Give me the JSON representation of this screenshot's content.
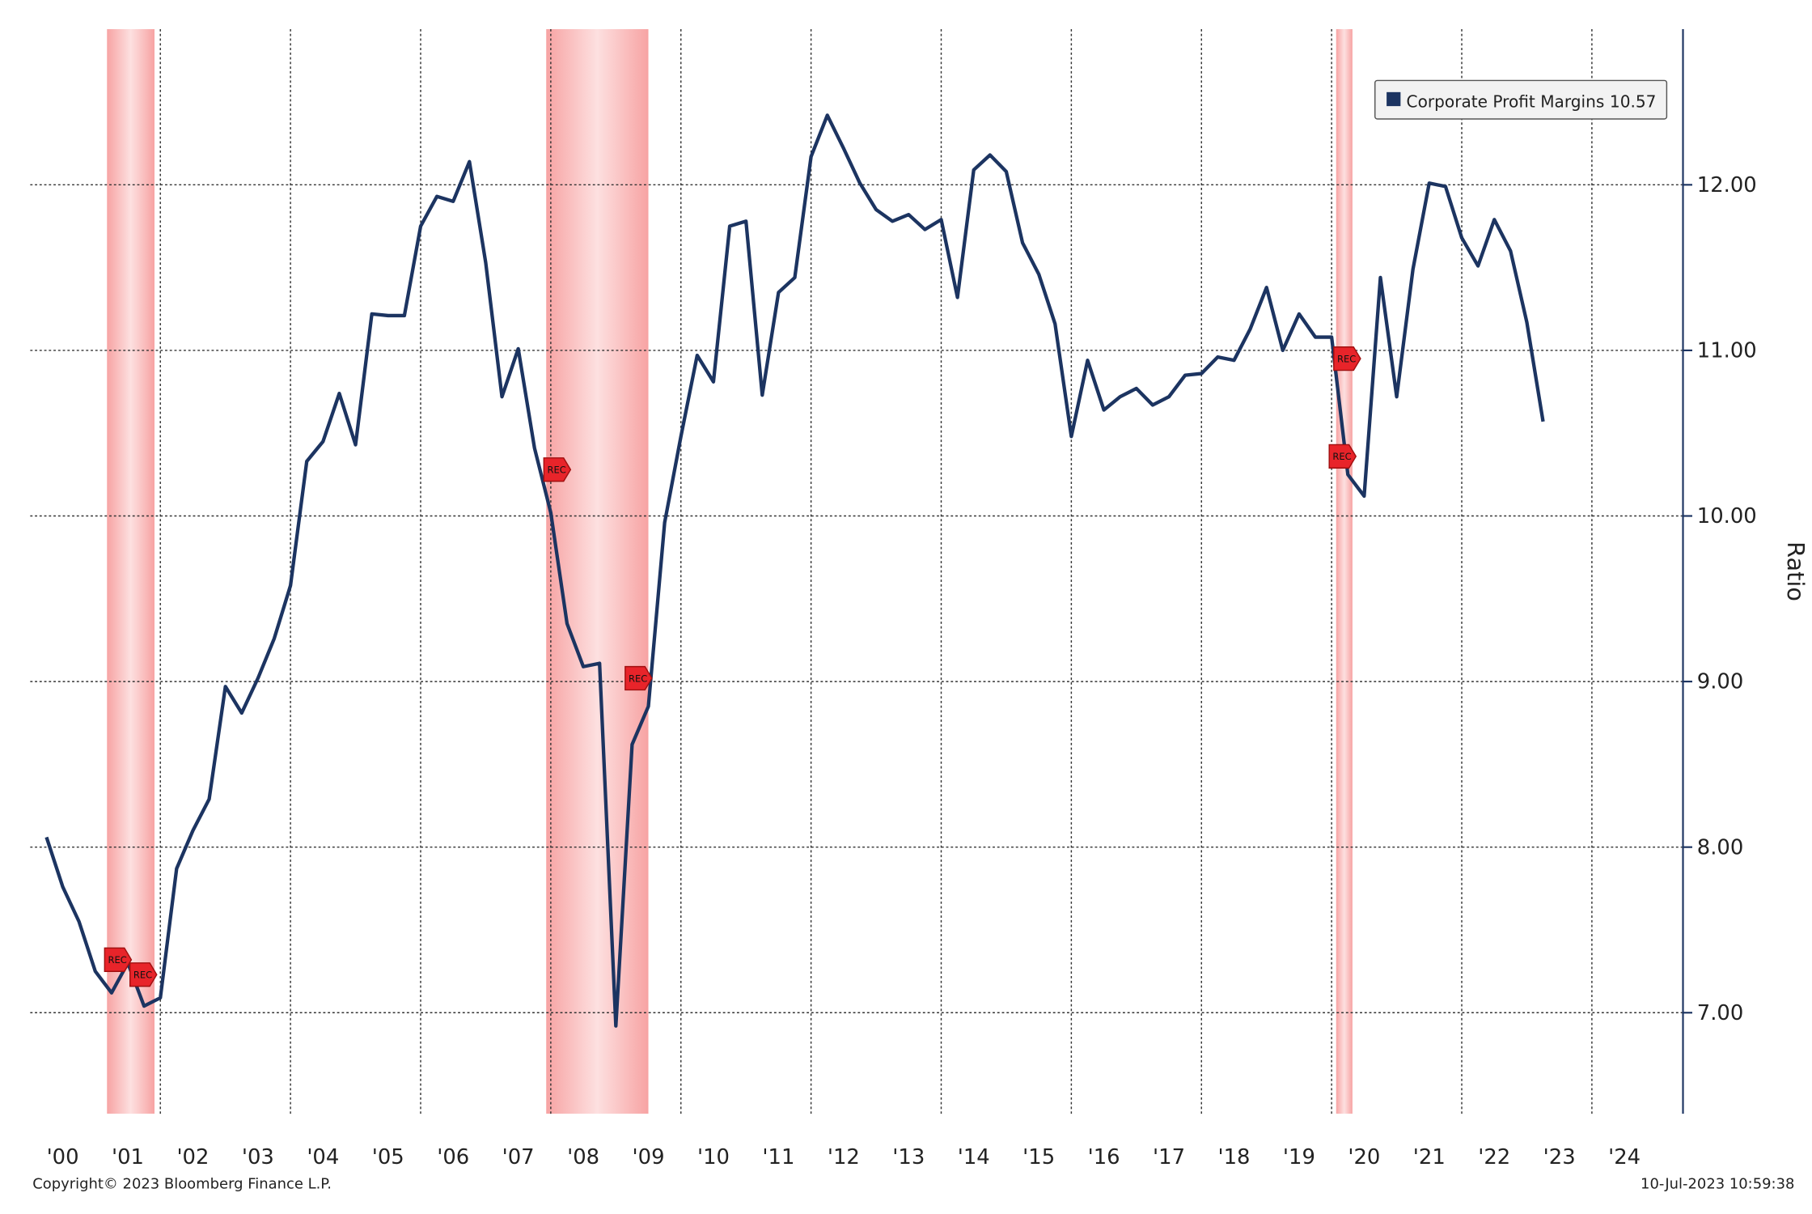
{
  "chart_data": {
    "type": "line",
    "y_axis_label": "Ratio",
    "footer_left": "Copyright© 2023 Bloomberg Finance L.P.",
    "footer_right": "10-Jul-2023 10:59:38",
    "legend_value": 10.57,
    "xlim": [
      2000,
      2025.4
    ],
    "ylim": [
      6.39,
      12.94
    ],
    "xticks": [
      {
        "value": 2000,
        "label": "'00"
      },
      {
        "value": 2001,
        "label": "'01"
      },
      {
        "value": 2002,
        "label": "'02"
      },
      {
        "value": 2003,
        "label": "'03"
      },
      {
        "value": 2004,
        "label": "'04"
      },
      {
        "value": 2005,
        "label": "'05"
      },
      {
        "value": 2006,
        "label": "'06"
      },
      {
        "value": 2007,
        "label": "'07"
      },
      {
        "value": 2008,
        "label": "'08"
      },
      {
        "value": 2009,
        "label": "'09"
      },
      {
        "value": 2010,
        "label": "'10"
      },
      {
        "value": 2011,
        "label": "'11"
      },
      {
        "value": 2012,
        "label": "'12"
      },
      {
        "value": 2013,
        "label": "'13"
      },
      {
        "value": 2014,
        "label": "'14"
      },
      {
        "value": 2015,
        "label": "'15"
      },
      {
        "value": 2016,
        "label": "'16"
      },
      {
        "value": 2017,
        "label": "'17"
      },
      {
        "value": 2018,
        "label": "'18"
      },
      {
        "value": 2019,
        "label": "'19"
      },
      {
        "value": 2020,
        "label": "'20"
      },
      {
        "value": 2021,
        "label": "'21"
      },
      {
        "value": 2022,
        "label": "'22"
      },
      {
        "value": 2023,
        "label": "'23"
      },
      {
        "value": 2024,
        "label": "'24"
      }
    ],
    "yticks": [
      {
        "value": 7,
        "label": "7.00"
      },
      {
        "value": 8,
        "label": "8.00"
      },
      {
        "value": 9,
        "label": "9.00"
      },
      {
        "value": 10,
        "label": "10.00"
      },
      {
        "value": 11,
        "label": "11.00"
      },
      {
        "value": 12,
        "label": "12.00"
      }
    ],
    "grid": true,
    "recessions": [
      [
        2001.18,
        2001.91
      ],
      [
        2007.93,
        2009.5
      ],
      [
        2020.07,
        2020.32
      ]
    ],
    "rec_markers": [
      {
        "label": "REC",
        "x": 2001.34,
        "y": 7.32
      },
      {
        "label": "REC",
        "x": 2001.73,
        "y": 7.23
      },
      {
        "label": "REC",
        "x": 2008.09,
        "y": 10.28
      },
      {
        "label": "REC",
        "x": 2009.34,
        "y": 9.02
      },
      {
        "label": "REC",
        "x": 2020.23,
        "y": 10.95
      },
      {
        "label": "REC",
        "x": 2020.16,
        "y": 10.36
      }
    ],
    "x": [
      2000.25,
      2000.5,
      2000.75,
      2001,
      2001.25,
      2001.5,
      2001.75,
      2002,
      2002.25,
      2002.5,
      2002.75,
      2003,
      2003.25,
      2003.5,
      2003.75,
      2004,
      2004.25,
      2004.5,
      2004.75,
      2005,
      2005.25,
      2005.5,
      2005.75,
      2006,
      2006.25,
      2006.5,
      2006.75,
      2007,
      2007.25,
      2007.5,
      2007.75,
      2008,
      2008.25,
      2008.5,
      2008.75,
      2009,
      2009.25,
      2009.5,
      2009.75,
      2010,
      2010.25,
      2010.5,
      2010.75,
      2011,
      2011.25,
      2011.5,
      2011.75,
      2012,
      2012.25,
      2012.5,
      2012.75,
      2013,
      2013.25,
      2013.5,
      2013.75,
      2014,
      2014.25,
      2014.5,
      2014.75,
      2015,
      2015.25,
      2015.5,
      2015.75,
      2016,
      2016.25,
      2016.5,
      2016.75,
      2017,
      2017.25,
      2017.5,
      2017.75,
      2018,
      2018.25,
      2018.5,
      2018.75,
      2019,
      2019.25,
      2019.5,
      2019.75,
      2020,
      2020.25,
      2020.5,
      2020.75,
      2021,
      2021.25,
      2021.5,
      2021.75,
      2022,
      2022.25,
      2022.5,
      2022.75,
      2023,
      2023.25
    ],
    "series": [
      {
        "name": "Corporate Profit Margins",
        "color": "#1c3461",
        "values": [
          8.06,
          7.76,
          7.55,
          7.25,
          7.12,
          7.3,
          7.04,
          7.09,
          7.87,
          8.1,
          8.29,
          8.97,
          8.81,
          9.02,
          9.26,
          9.58,
          10.33,
          10.45,
          10.74,
          10.43,
          11.22,
          11.21,
          11.21,
          11.75,
          11.93,
          11.9,
          12.14,
          11.53,
          10.72,
          11.01,
          10.41,
          10.02,
          9.35,
          9.09,
          9.11,
          6.92,
          8.62,
          8.85,
          9.96,
          10.48,
          10.97,
          10.81,
          11.75,
          11.78,
          10.73,
          11.35,
          11.44,
          12.17,
          12.42,
          12.22,
          12.01,
          11.85,
          11.78,
          11.82,
          11.73,
          11.79,
          11.32,
          12.09,
          12.18,
          12.08,
          11.65,
          11.46,
          11.16,
          10.48,
          10.94,
          10.64,
          10.72,
          10.77,
          10.67,
          10.72,
          10.85,
          10.86,
          10.96,
          10.94,
          11.13,
          11.38,
          11.0,
          11.22,
          11.08,
          11.08,
          10.25,
          10.12,
          11.44,
          10.72,
          11.49,
          12.01,
          11.99,
          11.68,
          11.51,
          11.79,
          11.6,
          11.17,
          10.57
        ]
      }
    ]
  }
}
